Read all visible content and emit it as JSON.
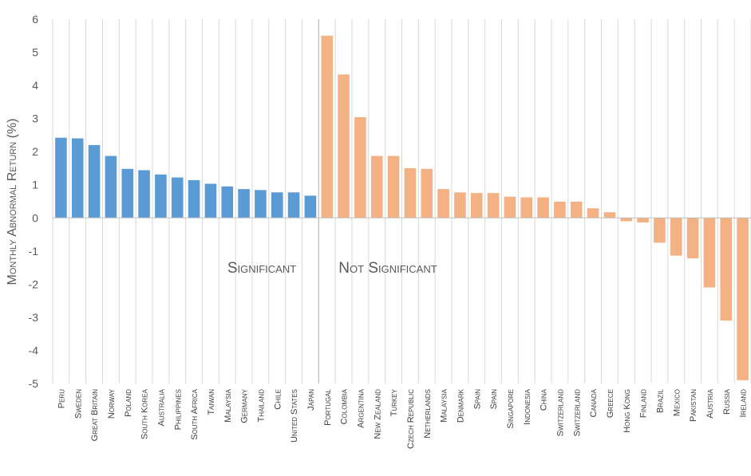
{
  "chart_data": {
    "type": "bar",
    "title": "",
    "xlabel": "",
    "ylabel": "Monthly Abnormal Return (%)",
    "ylim": [
      -5,
      6
    ],
    "yticks": [
      6,
      5,
      4,
      3,
      2,
      1,
      0,
      -1,
      -2,
      -3,
      -4,
      -5
    ],
    "grid": true,
    "legend": "none",
    "group_labels": {
      "significant": "Significant",
      "not_significant": "Not Significant"
    },
    "colors": {
      "significant": "#5B9BD5",
      "not_significant": "#F4B183",
      "grid": "#D9D9D9",
      "divider": "#BFBFBF"
    },
    "significant_count": 16,
    "categories": [
      "Peru",
      "Sweden",
      "Great Britain",
      "Norway",
      "Poland",
      "South Korea",
      "Australia",
      "Philippines",
      "South Africa",
      "Taiwan",
      "Malaysia",
      "Germany",
      "Thailand",
      "Chile",
      "United States",
      "Japan",
      "Portugal",
      "Colombia",
      "Argentina",
      "New Zealand",
      "Turkey",
      "Czech Republic",
      "Netherlands",
      "Malaysia",
      "Denmark",
      "Spain",
      "Spain",
      "Singapore",
      "Indonesia",
      "China",
      "Switzerland",
      "Switzerland",
      "Canada",
      "Greece",
      "Hong Kong",
      "Finland",
      "Brazil",
      "Mexico",
      "Pakistan",
      "Austria",
      "Russia",
      "Ireland"
    ],
    "values": [
      2.42,
      2.4,
      2.2,
      1.87,
      1.48,
      1.44,
      1.31,
      1.22,
      1.14,
      1.03,
      0.95,
      0.87,
      0.84,
      0.77,
      0.77,
      0.67,
      5.5,
      4.33,
      3.04,
      1.87,
      1.87,
      1.5,
      1.48,
      0.87,
      0.77,
      0.75,
      0.75,
      0.64,
      0.62,
      0.62,
      0.49,
      0.49,
      0.29,
      0.17,
      -0.1,
      -0.14,
      -0.75,
      -1.14,
      -1.22,
      -2.1,
      -3.1,
      -4.9
    ]
  }
}
